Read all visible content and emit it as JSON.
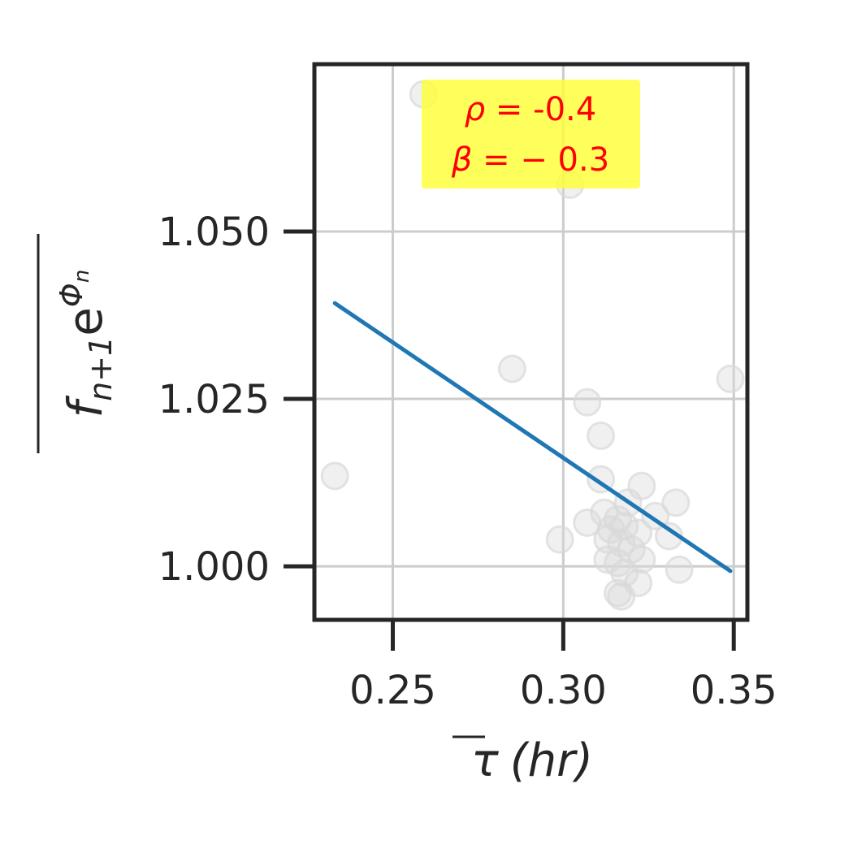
{
  "chart_data": {
    "type": "scatter",
    "x_ticks": [
      0.25,
      0.3,
      0.35
    ],
    "x_tick_labels": [
      "0.25",
      "0.30",
      "0.35"
    ],
    "y_ticks": [
      1.0,
      1.025,
      1.05
    ],
    "y_tick_labels": [
      "1.000",
      "1.025",
      "1.050"
    ],
    "xlim": [
      0.227,
      0.354
    ],
    "ylim": [
      0.992,
      1.075
    ],
    "xlabel_main": "τ",
    "xlabel_unit": "(hr)",
    "ylabel_base": "f",
    "ylabel_sub": "n+1",
    "ylabel_e": "e",
    "ylabel_exp": "Φ",
    "ylabel_exp_sub": "n",
    "grid": true,
    "points": [
      {
        "x": 0.259,
        "y": 1.0705
      },
      {
        "x": 0.302,
        "y": 1.057
      },
      {
        "x": 0.233,
        "y": 1.0135
      },
      {
        "x": 0.285,
        "y": 1.0295
      },
      {
        "x": 0.349,
        "y": 1.028
      },
      {
        "x": 0.307,
        "y": 1.0245
      },
      {
        "x": 0.311,
        "y": 1.0195
      },
      {
        "x": 0.311,
        "y": 1.013
      },
      {
        "x": 0.323,
        "y": 1.012
      },
      {
        "x": 0.319,
        "y": 1.0095
      },
      {
        "x": 0.327,
        "y": 1.0075
      },
      {
        "x": 0.333,
        "y": 1.0095
      },
      {
        "x": 0.312,
        "y": 1.008
      },
      {
        "x": 0.316,
        "y": 1.007
      },
      {
        "x": 0.307,
        "y": 1.0065
      },
      {
        "x": 0.314,
        "y": 1.0055
      },
      {
        "x": 0.318,
        "y": 1.006
      },
      {
        "x": 0.322,
        "y": 1.005
      },
      {
        "x": 0.299,
        "y": 1.004
      },
      {
        "x": 0.313,
        "y": 1.004
      },
      {
        "x": 0.317,
        "y": 1.0035
      },
      {
        "x": 0.32,
        "y": 1.0025
      },
      {
        "x": 0.331,
        "y": 1.0045
      },
      {
        "x": 0.313,
        "y": 1.001
      },
      {
        "x": 0.316,
        "y": 1.0005
      },
      {
        "x": 0.323,
        "y": 1.001
      },
      {
        "x": 0.334,
        "y": 0.9995
      },
      {
        "x": 0.318,
        "y": 0.999
      },
      {
        "x": 0.322,
        "y": 0.9975
      },
      {
        "x": 0.316,
        "y": 0.996
      },
      {
        "x": 0.317,
        "y": 0.9955
      }
    ],
    "fit_line": {
      "x": [
        0.233,
        0.349
      ],
      "y": [
        1.0393,
        0.9993
      ],
      "color": "#1f77b4"
    },
    "annotation": {
      "rho_symbol": "ρ",
      "rho_eq": " = ",
      "rho_value": "-0.4",
      "beta_symbol": "β",
      "beta_eq": " = ",
      "beta_value": "− 0.3",
      "box_color": "#ffff33",
      "text_color": "#ff0000"
    },
    "point_color": "#d9d9d9"
  }
}
